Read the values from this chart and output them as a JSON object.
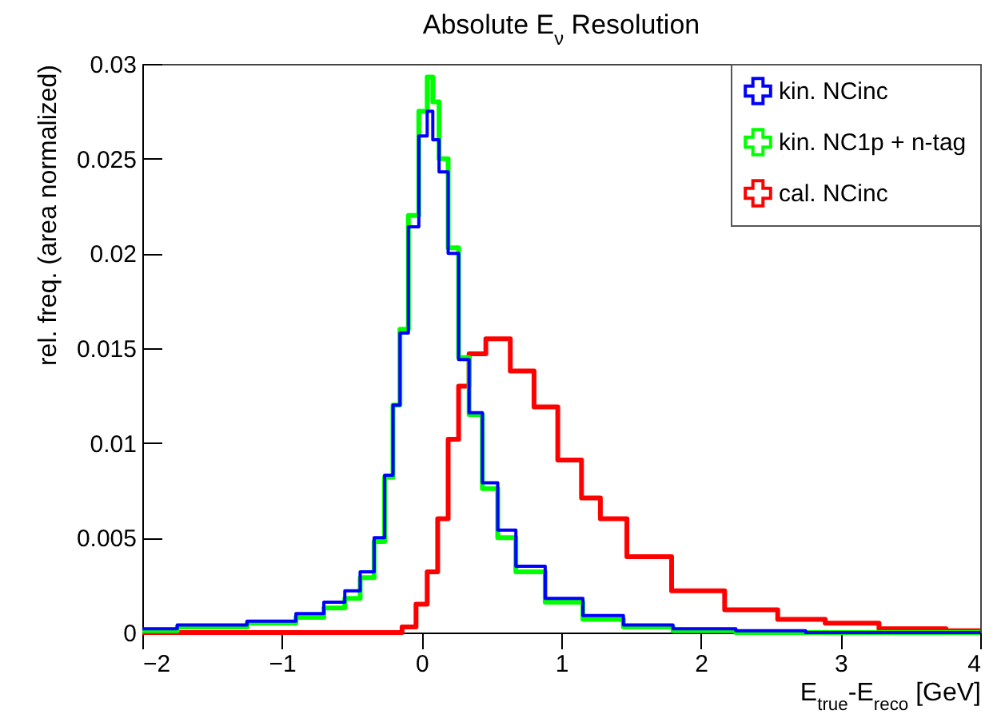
{
  "chart_data": {
    "type": "step",
    "title": "Absolute E$_{ν}$ Resolution",
    "xlabel": "E$_{true}$-E$_{reco}$ [GeV]",
    "ylabel": "rel. freq. (area normalized)",
    "xlim": [
      -2,
      4
    ],
    "xticks": [
      {
        "value": -2,
        "label": "−2"
      },
      {
        "value": -1,
        "label": "−1"
      },
      0,
      1,
      2,
      3,
      4
    ],
    "ylim": [
      0,
      0.03
    ],
    "yticks": [
      0,
      0.005,
      0.01,
      0.015,
      0.02,
      0.025,
      0.03
    ],
    "grid": false,
    "legend": "top right",
    "marker": "none",
    "line_style": "solid",
    "series": [
      {
        "name": "kin. NCinc",
        "color": "#0000ff",
        "x": [
          -2,
          -1.5,
          -1,
          -0.8,
          -0.6,
          -0.5,
          -0.38,
          -0.3,
          -0.23,
          -0.18,
          -0.13,
          -0.06,
          0.02,
          0.06,
          0.1,
          0.15,
          0.23,
          0.3,
          0.38,
          0.49,
          0.6,
          0.75,
          1.02,
          1.29,
          1.6,
          2,
          2.5,
          3,
          4
        ],
        "values": [
          0.0002,
          0.0004,
          0.0006,
          0.001,
          0.0016,
          0.0022,
          0.0032,
          0.005,
          0.0083,
          0.012,
          0.0158,
          0.0214,
          0.0262,
          0.0275,
          0.026,
          0.0243,
          0.02,
          0.0144,
          0.0116,
          0.0079,
          0.0054,
          0.0035,
          0.0018,
          0.0009,
          0.0004,
          0.0002,
          0.0001,
          0,
          0
        ]
      },
      {
        "name": "kin. NC1p + n-tag",
        "color": "#00ff00",
        "x": [
          -2,
          -1.5,
          -1,
          -0.8,
          -0.6,
          -0.5,
          -0.38,
          -0.3,
          -0.23,
          -0.18,
          -0.13,
          -0.06,
          0.02,
          0.06,
          0.1,
          0.15,
          0.23,
          0.3,
          0.38,
          0.49,
          0.6,
          0.75,
          1.02,
          1.29,
          1.6,
          2,
          2.5,
          3,
          4
        ],
        "values": [
          0.0001,
          0.0003,
          0.0005,
          0.0008,
          0.0013,
          0.0018,
          0.0029,
          0.0048,
          0.0082,
          0.012,
          0.016,
          0.022,
          0.0275,
          0.0293,
          0.028,
          0.025,
          0.0203,
          0.0145,
          0.0115,
          0.0076,
          0.005,
          0.0032,
          0.0016,
          0.0007,
          0.0003,
          0.0001,
          0,
          0,
          0
        ]
      },
      {
        "name": "cal. NCinc",
        "color": "#ff0000",
        "x": [
          -2,
          -0.2,
          -0.08,
          0,
          0.08,
          0.15,
          0.23,
          0.3,
          0.38,
          0.54,
          0.73,
          0.88,
          1.07,
          1.22,
          1.34,
          1.6,
          1.98,
          2.36,
          2.74,
          3.04,
          3.51,
          4
        ],
        "values": [
          0,
          0,
          0.0003,
          0.0015,
          0.0032,
          0.006,
          0.0102,
          0.013,
          0.0147,
          0.0155,
          0.0138,
          0.0119,
          0.0091,
          0.0071,
          0.006,
          0.004,
          0.0022,
          0.0012,
          0.0007,
          0.0005,
          0.0002,
          0.0001
        ]
      }
    ]
  }
}
